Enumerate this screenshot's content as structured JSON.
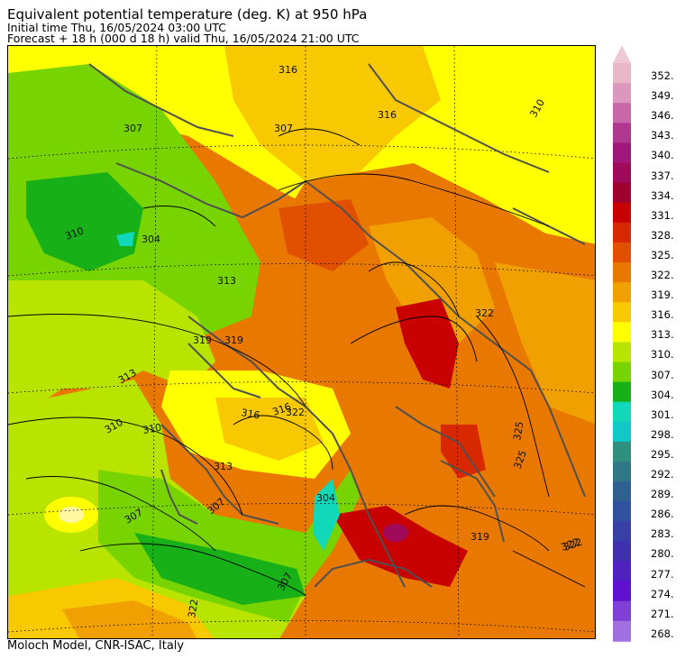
{
  "header": {
    "title": "Equivalent potential temperature (deg. K) at 950 hPa",
    "initial_time": "Initial time  Thu, 16/05/2024  03:00 UTC",
    "forecast": "Forecast  +  18 h  (000 d 18 h)  valid Thu, 16/05/2024 21:00 UTC"
  },
  "footer": "Moloch Model, CNR-ISAC, Italy",
  "colorbar": {
    "levels": [
      "352.",
      "349.",
      "346.",
      "343.",
      "340.",
      "337.",
      "334.",
      "331.",
      "328.",
      "325.",
      "322.",
      "319.",
      "316.",
      "313.",
      "310.",
      "307.",
      "304.",
      "301.",
      "298.",
      "295.",
      "292.",
      "289.",
      "286.",
      "283.",
      "280.",
      "277.",
      "274.",
      "271.",
      "268."
    ],
    "colors": [
      "#e8b8c8",
      "#dc98bc",
      "#c868a8",
      "#b03890",
      "#a0187a",
      "#a00a5a",
      "#a00030",
      "#c80000",
      "#d82800",
      "#e05000",
      "#e87800",
      "#f0a000",
      "#f8c800",
      "#ffff00",
      "#b8e400",
      "#78d400",
      "#18b018",
      "#10d8b8",
      "#10c8c8",
      "#309080",
      "#307888",
      "#306090",
      "#3050a0",
      "#3840a8",
      "#4030b0",
      "#5020c0",
      "#6010d0",
      "#8040d8",
      "#a070e0"
    ],
    "top_arrow_color": "#f0c8d4",
    "bottom_arrow_color": "#b088e8"
  },
  "map": {
    "contour_labels": [
      {
        "text": "307"
      },
      {
        "text": "310"
      },
      {
        "text": "313"
      },
      {
        "text": "316"
      },
      {
        "text": "319"
      },
      {
        "text": "322"
      },
      {
        "text": "325"
      },
      {
        "text": "322"
      },
      {
        "text": "316"
      },
      {
        "text": "310"
      },
      {
        "text": "313"
      },
      {
        "text": "307"
      },
      {
        "text": "310"
      },
      {
        "text": "316"
      },
      {
        "text": "319"
      },
      {
        "text": "322"
      },
      {
        "text": "325"
      },
      {
        "text": "310"
      },
      {
        "text": "304"
      },
      {
        "text": "307"
      },
      {
        "text": "316"
      },
      {
        "text": "313"
      },
      {
        "text": "319"
      },
      {
        "text": "322"
      },
      {
        "text": "307"
      },
      {
        "text": "304"
      },
      {
        "text": "307"
      },
      {
        "text": "322"
      }
    ]
  }
}
